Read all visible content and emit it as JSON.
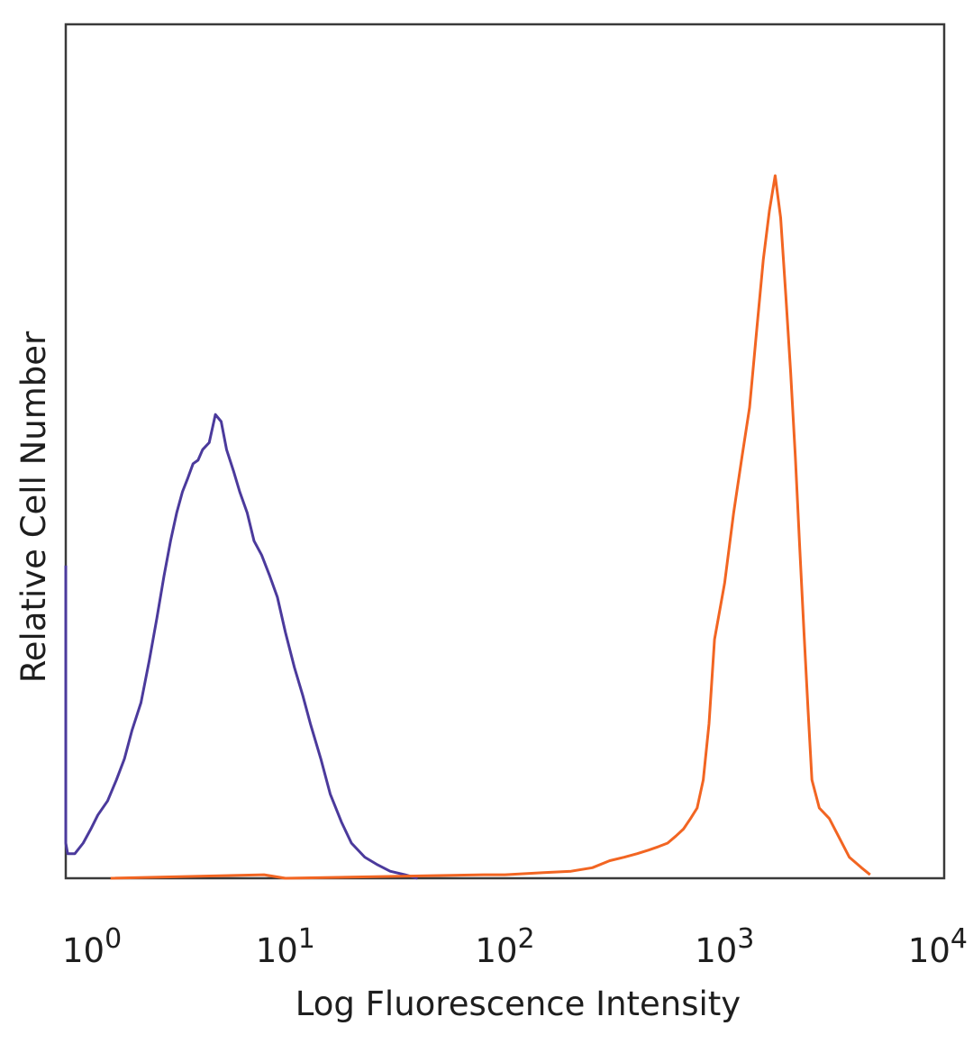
{
  "chart_data": {
    "type": "line",
    "title": "",
    "xlabel": "Log Fluorescence Intensity",
    "ylabel": "Relative Cell Number",
    "x_scale": "log",
    "xlim": [
      1,
      10000
    ],
    "ylim": [
      0,
      100
    ],
    "grid": false,
    "legend": "none",
    "x_ticks": [
      {
        "value": 1,
        "base": "10",
        "exp": "0"
      },
      {
        "value": 10,
        "base": "10",
        "exp": "1"
      },
      {
        "value": 100,
        "base": "10",
        "exp": "2"
      },
      {
        "value": 1000,
        "base": "10",
        "exp": "3"
      },
      {
        "value": 10000,
        "base": "10",
        "exp": "4"
      }
    ],
    "series": [
      {
        "color": "#4b3a9c",
        "x": [
          1.0,
          1.0,
          1.0,
          1.02,
          1.1,
          1.2,
          1.3,
          1.4,
          1.55,
          1.7,
          1.85,
          2.0,
          2.2,
          2.4,
          2.6,
          2.8,
          3.0,
          3.2,
          3.4,
          3.6,
          3.8,
          4.0,
          4.2,
          4.5,
          4.8,
          5.1,
          5.4,
          5.8,
          6.2,
          6.7,
          7.2,
          7.8,
          8.5,
          9.2,
          10.0,
          11.0,
          12.0,
          13.0,
          14.5,
          16.0,
          18.0,
          20.0,
          23.0,
          26.0,
          30.0,
          35.0,
          40.0
        ],
        "y": [
          44.5,
          10.0,
          5.0,
          3.5,
          3.5,
          5.0,
          7.0,
          9.0,
          11.0,
          14.0,
          17.0,
          21.0,
          25.0,
          31.0,
          37.0,
          43.0,
          48.0,
          52.0,
          55.0,
          57.0,
          59.0,
          59.5,
          61.0,
          62.0,
          66.0,
          65.0,
          61.0,
          58.0,
          55.0,
          52.0,
          48.0,
          46.0,
          43.0,
          40.0,
          35.0,
          30.0,
          26.0,
          22.0,
          17.0,
          12.0,
          8.0,
          5.0,
          3.0,
          2.0,
          1.0,
          0.5,
          0.0
        ]
      },
      {
        "color": "#f26522",
        "x": [
          1.6,
          8.0,
          10.0,
          80.0,
          100.0,
          150.0,
          200.0,
          250.0,
          300.0,
          350.0,
          400.0,
          450.0,
          500.0,
          550.0,
          600.0,
          650.0,
          700.0,
          750.0,
          800.0,
          850.0,
          900.0,
          1000.0,
          1100.0,
          1200.0,
          1300.0,
          1400.0,
          1500.0,
          1600.0,
          1700.0,
          1800.0,
          1900.0,
          2000.0,
          2100.0,
          2200.0,
          2300.0,
          2400.0,
          2500.0,
          2700.0,
          3000.0,
          3300.0,
          3700.0,
          4200.0,
          4600.0
        ],
        "y": [
          0.0,
          0.5,
          0.0,
          0.5,
          0.5,
          0.8,
          1.0,
          1.5,
          2.5,
          3.0,
          3.5,
          4.0,
          4.5,
          5.0,
          6.0,
          7.0,
          8.5,
          10.0,
          14.0,
          22.0,
          34.0,
          42.0,
          52.0,
          60.0,
          67.0,
          78.0,
          88.0,
          95.0,
          100.0,
          94.0,
          83.0,
          72.0,
          60.0,
          47.0,
          35.0,
          24.0,
          14.0,
          10.0,
          8.5,
          6.0,
          3.0,
          1.5,
          0.5
        ]
      }
    ]
  }
}
